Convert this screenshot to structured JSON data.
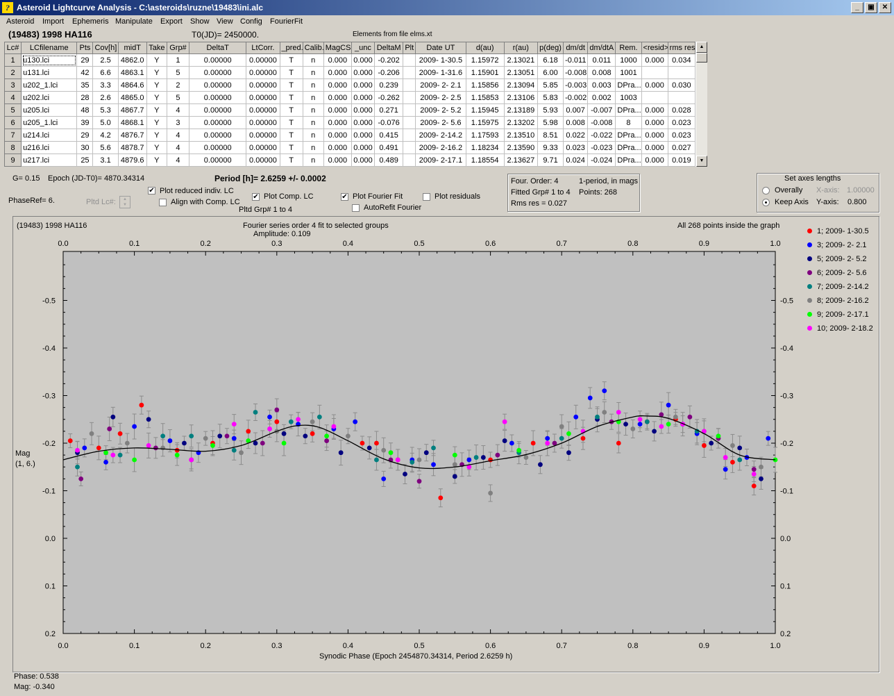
{
  "window": {
    "title": "Asteroid Lightcurve Analysis - C:\\asteroids\\ruzne\\19483\\ini.alc",
    "icon_glyph": "?",
    "buttons": [
      "minimize-icon",
      "restore-icon",
      "close-icon"
    ]
  },
  "menu": [
    "Asteroid",
    "Import",
    "Ephemeris",
    "Manipulate",
    "Export",
    "Show",
    "View",
    "Config",
    "FourierFit"
  ],
  "header": {
    "asteroid": "(19483) 1998 HA116",
    "t0": "T0(JD)= 2450000.",
    "elements": "Elements from file elms.xt"
  },
  "table": {
    "columns": [
      "Lc#",
      "LCfilename",
      "Pts",
      "Cov[h]",
      "midT",
      "Take",
      "Grp#",
      "DeltaT",
      "LtCorr.",
      "_pred.",
      "Calib.",
      "MagCS",
      "_unc",
      "DeltaM",
      "Plt",
      "Date UT",
      "d(au)",
      "r(au)",
      "p(deg)",
      "dm/dt",
      "dm/dtA",
      "Rem.",
      "<resid>",
      "rms res"
    ],
    "rows": [
      [
        "1",
        "u130.lci",
        "29",
        "2.5",
        "4862.0",
        "Y",
        "1",
        "0.00000",
        "0.00000",
        "T",
        "n",
        "0.000",
        "0.000",
        "-0.202",
        "",
        "2009- 1-30.5",
        "1.15972",
        "2.13021",
        "6.18",
        "-0.011",
        "0.011",
        "1000",
        "0.000",
        "0.034"
      ],
      [
        "2",
        "u131.lci",
        "42",
        "6.6",
        "4863.1",
        "Y",
        "5",
        "0.00000",
        "0.00000",
        "T",
        "n",
        "0.000",
        "0.000",
        "-0.206",
        "",
        "2009- 1-31.6",
        "1.15901",
        "2.13051",
        "6.00",
        "-0.008",
        "0.008",
        "1001",
        "",
        ""
      ],
      [
        "3",
        "u202_1.lci",
        "35",
        "3.3",
        "4864.6",
        "Y",
        "2",
        "0.00000",
        "0.00000",
        "T",
        "n",
        "0.000",
        "0.000",
        "0.239",
        "",
        "2009- 2- 2.1",
        "1.15856",
        "2.13094",
        "5.85",
        "-0.003",
        "0.003",
        "DPra...",
        "0.000",
        "0.030"
      ],
      [
        "4",
        "u202.lci",
        "28",
        "2.6",
        "4865.0",
        "Y",
        "5",
        "0.00000",
        "0.00000",
        "T",
        "n",
        "0.000",
        "0.000",
        "-0.262",
        "",
        "2009- 2- 2.5",
        "1.15853",
        "2.13106",
        "5.83",
        "-0.002",
        "0.002",
        "1003",
        "",
        ""
      ],
      [
        "5",
        "u205.lci",
        "48",
        "5.3",
        "4867.7",
        "Y",
        "4",
        "0.00000",
        "0.00000",
        "T",
        "n",
        "0.000",
        "0.000",
        "0.271",
        "",
        "2009- 2- 5.2",
        "1.15945",
        "2.13189",
        "5.93",
        "0.007",
        "-0.007",
        "DPra...",
        "0.000",
        "0.028"
      ],
      [
        "6",
        "u205_1.lci",
        "39",
        "5.0",
        "4868.1",
        "Y",
        "3",
        "0.00000",
        "0.00000",
        "T",
        "n",
        "0.000",
        "0.000",
        "-0.076",
        "",
        "2009- 2- 5.6",
        "1.15975",
        "2.13202",
        "5.98",
        "0.008",
        "-0.008",
        "8",
        "0.000",
        "0.023"
      ],
      [
        "7",
        "u214.lci",
        "29",
        "4.2",
        "4876.7",
        "Y",
        "4",
        "0.00000",
        "0.00000",
        "T",
        "n",
        "0.000",
        "0.000",
        "0.415",
        "",
        "2009- 2-14.2",
        "1.17593",
        "2.13510",
        "8.51",
        "0.022",
        "-0.022",
        "DPra...",
        "0.000",
        "0.023"
      ],
      [
        "8",
        "u216.lci",
        "30",
        "5.6",
        "4878.7",
        "Y",
        "4",
        "0.00000",
        "0.00000",
        "T",
        "n",
        "0.000",
        "0.000",
        "0.491",
        "",
        "2009- 2-16.2",
        "1.18234",
        "2.13590",
        "9.33",
        "0.023",
        "-0.023",
        "DPra...",
        "0.000",
        "0.027"
      ],
      [
        "9",
        "u217.lci",
        "25",
        "3.1",
        "4879.6",
        "Y",
        "4",
        "0.00000",
        "0.00000",
        "T",
        "n",
        "0.000",
        "0.000",
        "0.489",
        "",
        "2009- 2-17.1",
        "1.18554",
        "2.13627",
        "9.71",
        "0.024",
        "-0.024",
        "DPra...",
        "0.000",
        "0.019"
      ]
    ]
  },
  "controls": {
    "g_value": "G= 0.15",
    "epoch": "Epoch (JD-T0)= 4870.34314",
    "period": "Period [h]= 2.6259 +/- 0.0002",
    "phase_ref": "PhaseRef= 6.",
    "pltd_lc": "Pltd Lc#:",
    "plot_reduced": "Plot reduced indiv. LC",
    "align_comp": "Align with Comp. LC",
    "plot_comp": "Plot Comp. LC",
    "pltd_grp": "Pltd Grp#  1   to   4",
    "plot_fourier": "Plot Fourier Fit",
    "autorefit": "AutoRefit Fourier",
    "plot_residuals": "Plot residuals",
    "checks": {
      "plot_reduced": true,
      "align_comp": false,
      "plot_comp": true,
      "plot_fourier": true,
      "autorefit": false,
      "plot_residuals": false
    }
  },
  "fourier_info": {
    "order": "Four. Order:  4",
    "period_mode": "1-period, in mags",
    "fitted": "Fitted Grp# 1 to 4",
    "points": "Points: 268",
    "rms": "Rms res      = 0.027"
  },
  "axes_box": {
    "title": "Set axes lengths",
    "overall": "Overally",
    "keep": "Keep Axis",
    "x_label": "X-axis:",
    "x_value": "1.00000",
    "y_label": "Y-axis:",
    "y_value": "0.800",
    "selected": "keep"
  },
  "plot": {
    "object": "(19483) 1998 HA116",
    "fit_title": "Fourier series order 4 fit to selected groups",
    "amplitude": "Amplitude: 0.109",
    "inside": "All 268 points inside the graph",
    "ylabel_line1": "Mag",
    "ylabel_line2": "(1, 6.)",
    "xlabel": "Synodic Phase (Epoch 2454870.34314, Period 2.6259 h)"
  },
  "chart_data": {
    "type": "scatter",
    "title": "Fourier series order 4 fit to selected groups",
    "xlabel": "Synodic Phase (Epoch 2454870.34314, Period 2.6259 h)",
    "ylabel": "Mag (1, 6.)",
    "xlim": [
      0.0,
      1.0
    ],
    "ylim": [
      -0.6,
      0.2
    ],
    "y_inverted": true,
    "x_ticks": [
      "0.0",
      "0.1",
      "0.2",
      "0.3",
      "0.4",
      "0.5",
      "0.6",
      "0.7",
      "0.8",
      "0.9",
      "1.0"
    ],
    "y_ticks": [
      "-0.5",
      "-0.4",
      "-0.3",
      "-0.2",
      "-0.1",
      "0.0",
      "0.1",
      "0.2"
    ],
    "grid": false,
    "legend_position": "right",
    "fourier_curve": {
      "x": [
        0.0,
        0.05,
        0.1,
        0.15,
        0.2,
        0.25,
        0.3,
        0.33,
        0.36,
        0.4,
        0.45,
        0.5,
        0.55,
        0.6,
        0.65,
        0.7,
        0.75,
        0.8,
        0.82,
        0.85,
        0.9,
        0.95,
        1.0
      ],
      "y": [
        -0.165,
        -0.183,
        -0.19,
        -0.187,
        -0.183,
        -0.195,
        -0.225,
        -0.237,
        -0.233,
        -0.205,
        -0.167,
        -0.148,
        -0.15,
        -0.163,
        -0.176,
        -0.2,
        -0.235,
        -0.255,
        -0.257,
        -0.252,
        -0.22,
        -0.175,
        -0.165
      ]
    },
    "series": [
      {
        "name": "1; 2009- 1-30.5",
        "color": "#ff0000",
        "x": [
          0.01,
          0.05,
          0.08,
          0.11,
          0.16,
          0.21,
          0.26,
          0.3,
          0.35,
          0.42,
          0.44,
          0.47,
          0.53,
          0.6,
          0.66,
          0.73,
          0.78,
          0.82,
          0.86,
          0.9,
          0.94,
          0.97
        ],
        "y": [
          -0.205,
          -0.19,
          -0.22,
          -0.28,
          -0.185,
          -0.2,
          -0.225,
          -0.245,
          -0.22,
          -0.2,
          -0.2,
          -0.165,
          -0.085,
          -0.165,
          -0.2,
          -0.21,
          -0.2,
          -0.245,
          -0.25,
          -0.195,
          -0.16,
          -0.11
        ]
      },
      {
        "name": "3; 2009- 2- 2.1",
        "color": "#0000ff",
        "x": [
          0.03,
          0.06,
          0.1,
          0.15,
          0.19,
          0.24,
          0.29,
          0.33,
          0.38,
          0.41,
          0.45,
          0.49,
          0.52,
          0.57,
          0.63,
          0.68,
          0.72,
          0.74,
          0.76,
          0.81,
          0.85,
          0.89,
          0.93,
          0.96,
          0.99
        ],
        "y": [
          -0.19,
          -0.16,
          -0.235,
          -0.205,
          -0.18,
          -0.21,
          -0.255,
          -0.24,
          -0.23,
          -0.245,
          -0.125,
          -0.165,
          -0.155,
          -0.165,
          -0.2,
          -0.21,
          -0.255,
          -0.295,
          -0.31,
          -0.24,
          -0.28,
          -0.22,
          -0.145,
          -0.17,
          -0.21
        ]
      },
      {
        "name": "5; 2009- 2- 5.2",
        "color": "#00007f",
        "x": [
          0.02,
          0.07,
          0.12,
          0.17,
          0.22,
          0.27,
          0.31,
          0.34,
          0.39,
          0.43,
          0.48,
          0.51,
          0.55,
          0.59,
          0.62,
          0.67,
          0.71,
          0.75,
          0.79,
          0.83,
          0.87,
          0.91,
          0.95,
          0.98
        ],
        "y": [
          -0.18,
          -0.255,
          -0.25,
          -0.2,
          -0.215,
          -0.2,
          -0.22,
          -0.215,
          -0.18,
          -0.19,
          -0.135,
          -0.18,
          -0.13,
          -0.17,
          -0.205,
          -0.155,
          -0.18,
          -0.25,
          -0.24,
          -0.225,
          -0.24,
          -0.2,
          -0.19,
          -0.125
        ]
      },
      {
        "name": "6; 2009- 2- 5.6",
        "color": "#7f007f",
        "x": [
          0.025,
          0.065,
          0.13,
          0.18,
          0.23,
          0.28,
          0.3,
          0.37,
          0.46,
          0.5,
          0.56,
          0.61,
          0.69,
          0.77,
          0.84,
          0.88,
          0.92,
          0.97
        ],
        "y": [
          -0.125,
          -0.23,
          -0.19,
          -0.165,
          -0.215,
          -0.2,
          -0.27,
          -0.205,
          -0.165,
          -0.12,
          -0.155,
          -0.175,
          -0.2,
          -0.245,
          -0.26,
          -0.255,
          -0.21,
          -0.145
        ]
      },
      {
        "name": "7; 2009- 2-14.2",
        "color": "#007f7f",
        "x": [
          0.02,
          0.08,
          0.14,
          0.18,
          0.24,
          0.27,
          0.32,
          0.36,
          0.44,
          0.49,
          0.52,
          0.58,
          0.64,
          0.7,
          0.75,
          0.82,
          0.89,
          0.95
        ],
        "y": [
          -0.15,
          -0.175,
          -0.215,
          -0.215,
          -0.185,
          -0.265,
          -0.245,
          -0.255,
          -0.165,
          -0.16,
          -0.19,
          -0.17,
          -0.18,
          -0.21,
          -0.255,
          -0.245,
          -0.225,
          -0.165
        ]
      },
      {
        "name": "8; 2009- 2-16.2",
        "color": "#808080",
        "x": [
          0.04,
          0.09,
          0.14,
          0.2,
          0.25,
          0.3,
          0.35,
          0.4,
          0.45,
          0.5,
          0.55,
          0.6,
          0.65,
          0.7,
          0.76,
          0.8,
          0.86,
          0.9,
          0.94,
          0.98
        ],
        "y": [
          -0.22,
          -0.2,
          -0.19,
          -0.21,
          -0.18,
          -0.225,
          -0.245,
          -0.215,
          -0.185,
          -0.165,
          -0.155,
          -0.095,
          -0.17,
          -0.235,
          -0.265,
          -0.23,
          -0.255,
          -0.225,
          -0.195,
          -0.15
        ]
      },
      {
        "name": "9; 2009- 2-17.1",
        "color": "#00ff00",
        "x": [
          0.06,
          0.1,
          0.16,
          0.21,
          0.26,
          0.31,
          0.37,
          0.46,
          0.55,
          0.64,
          0.71,
          0.78,
          0.85,
          0.92,
          1.0
        ],
        "y": [
          -0.18,
          -0.165,
          -0.175,
          -0.195,
          -0.205,
          -0.2,
          -0.215,
          -0.18,
          -0.175,
          -0.185,
          -0.22,
          -0.245,
          -0.24,
          -0.215,
          -0.165
        ]
      },
      {
        "name": "10; 2009- 2-18.2",
        "color": "#ff00ff",
        "x": [
          0.02,
          0.07,
          0.12,
          0.18,
          0.24,
          0.29,
          0.33,
          0.38,
          0.47,
          0.57,
          0.62,
          0.68,
          0.73,
          0.78,
          0.81,
          0.84,
          0.87,
          0.9,
          0.93,
          0.97
        ],
        "y": [
          -0.185,
          -0.175,
          -0.195,
          -0.165,
          -0.24,
          -0.23,
          -0.25,
          -0.235,
          -0.165,
          -0.15,
          -0.245,
          -0.2,
          -0.225,
          -0.265,
          -0.25,
          -0.235,
          -0.24,
          -0.225,
          -0.17,
          -0.135
        ]
      }
    ]
  },
  "status": {
    "phase": "Phase:  0.538",
    "mag": "Mag:    -0.340"
  }
}
